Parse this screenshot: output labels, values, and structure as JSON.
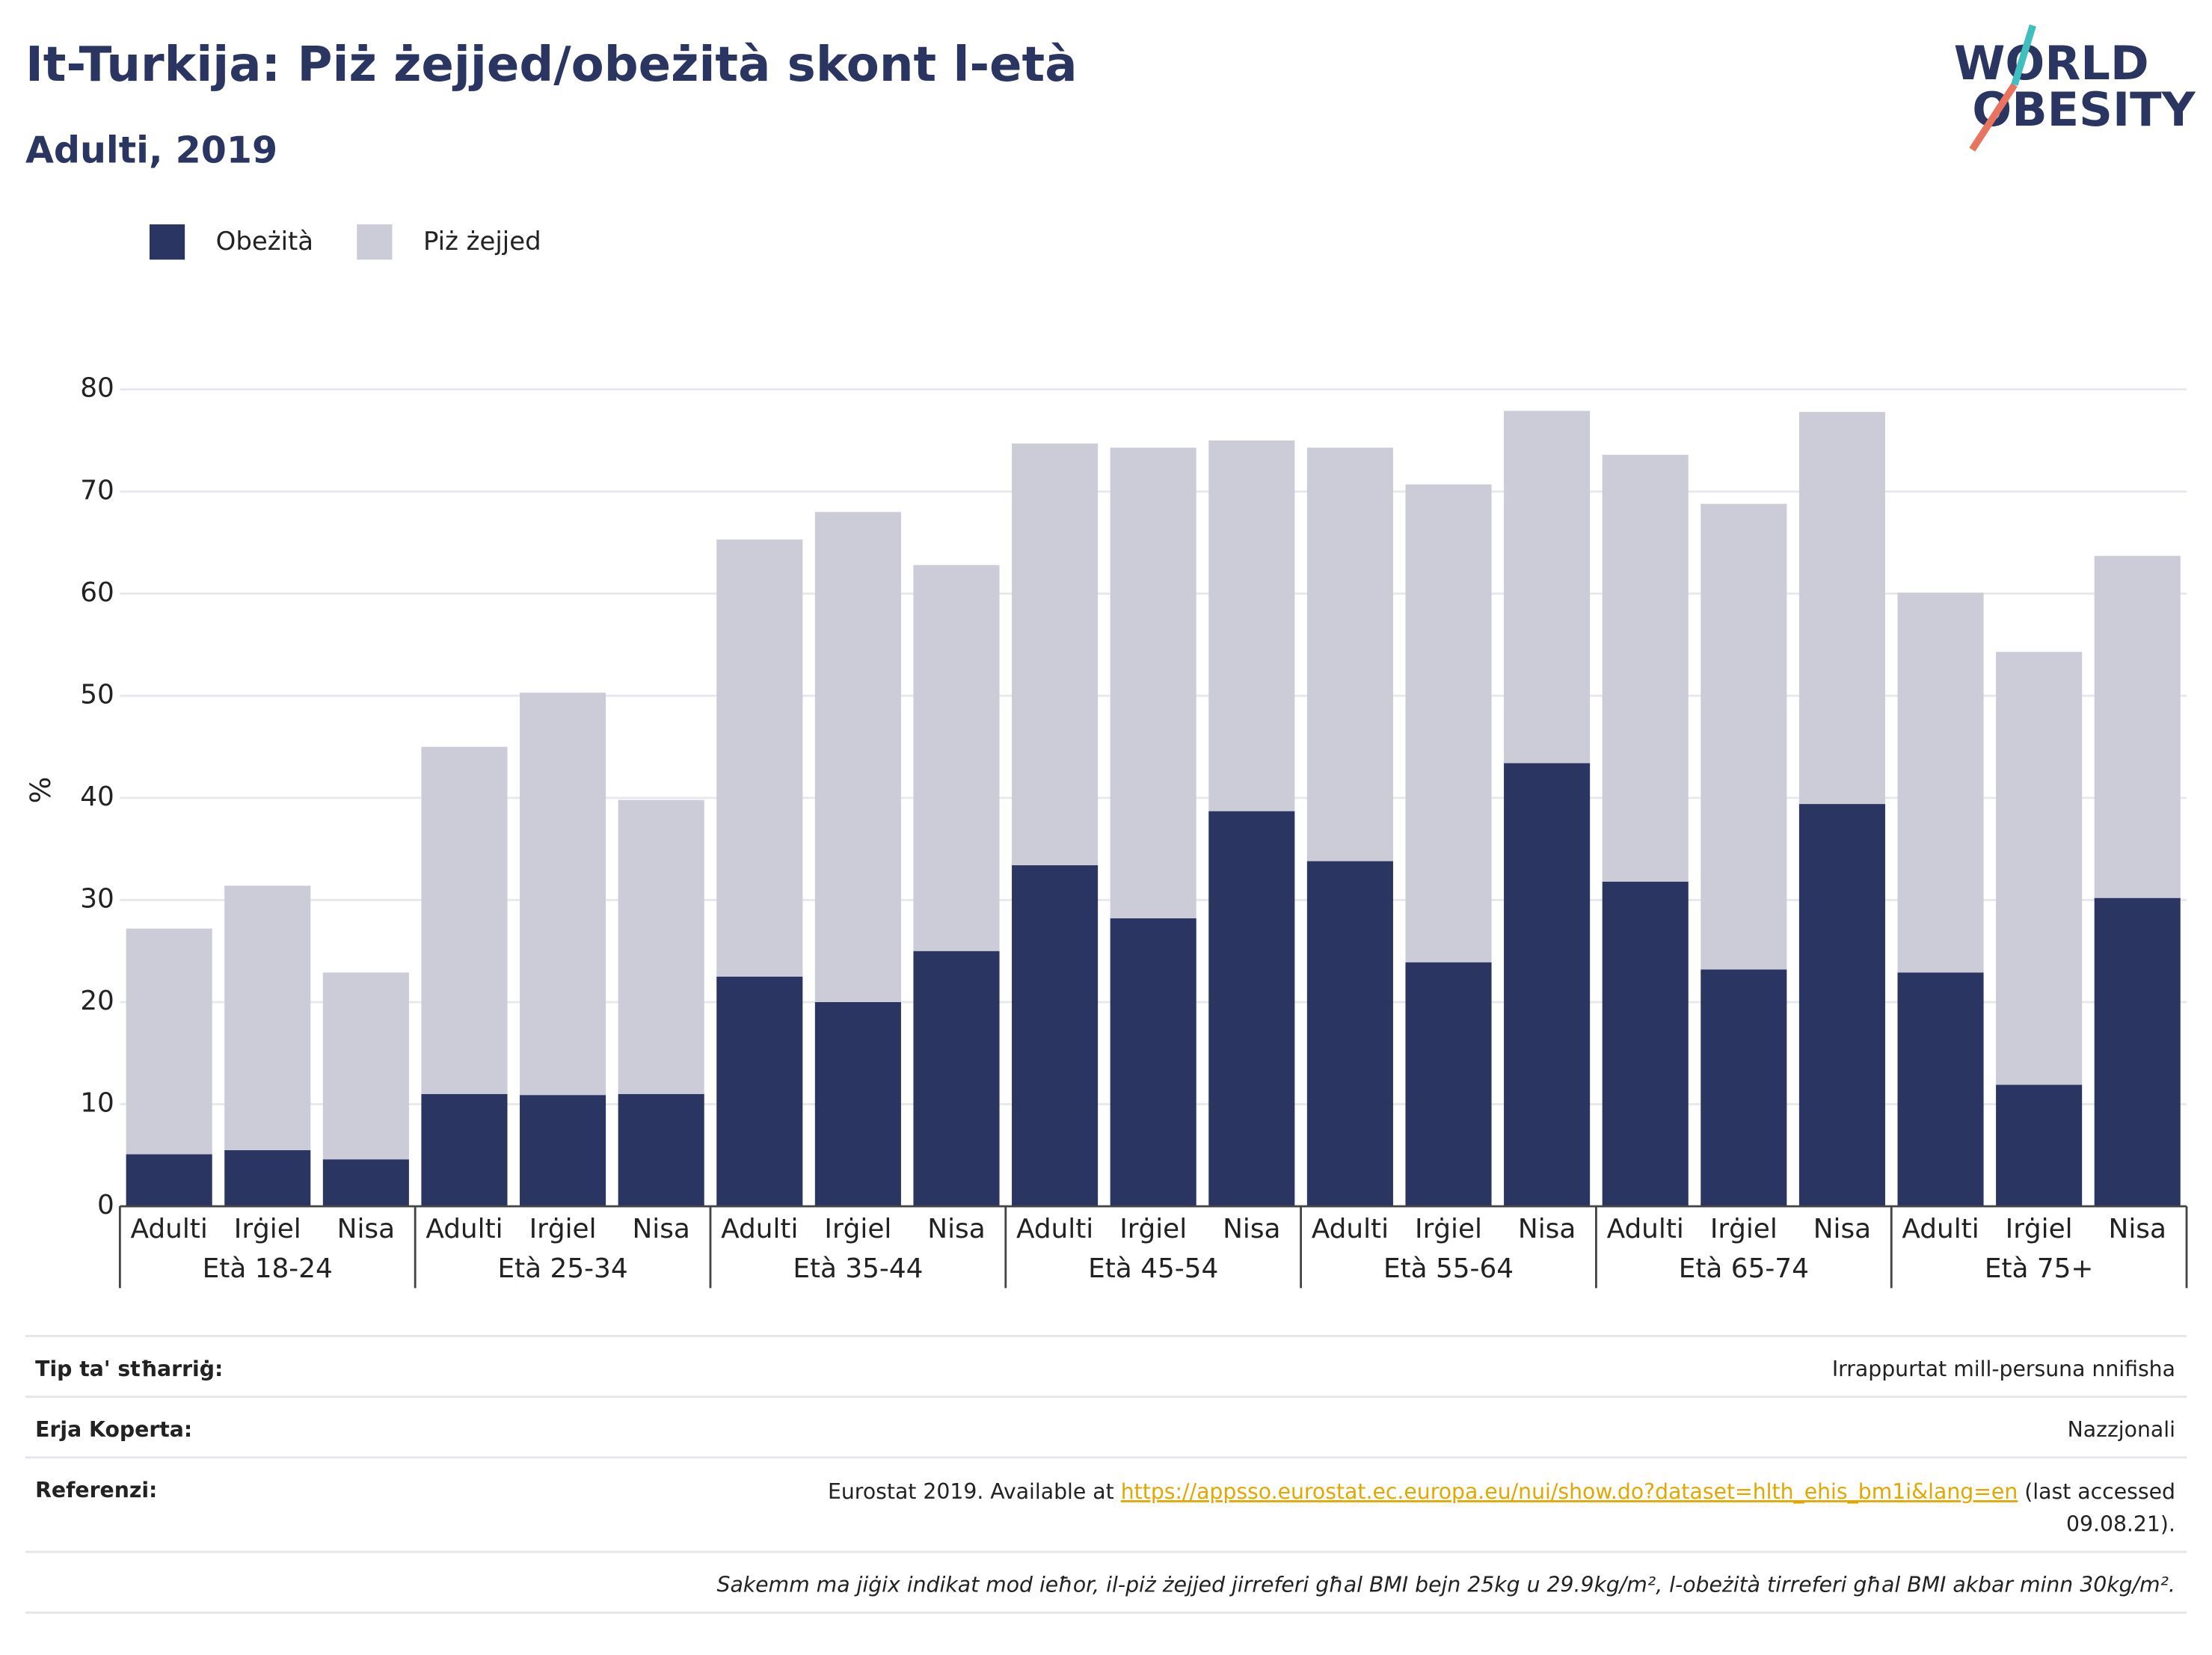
{
  "chart_data": {
    "type": "stacked_bar",
    "title": "It-Turkija: Piż żejjed/obeżità skont l-età",
    "subtitle": "Adulti, 2019",
    "y_label": "%",
    "categories": [
      "Adulti",
      "Irġiel",
      "Nisa",
      "Adulti",
      "Irġiel",
      "Nisa",
      "Adulti",
      "Irġiel",
      "Nisa",
      "Adulti",
      "Irġiel",
      "Nisa",
      "Adulti",
      "Irġiel",
      "Nisa",
      "Adulti",
      "Irġiel",
      "Nisa",
      "Adulti",
      "Irġiel",
      "Nisa"
    ],
    "groups": [
      "Età 18-24",
      "Età 25-34",
      "Età 35-44",
      "Età 45-54",
      "Età 55-64",
      "Età 65-74",
      "Età 75+"
    ],
    "series": [
      {
        "name": "Obeżità",
        "color": "#2a3561",
        "values": [
          5.1,
          5.5,
          4.6,
          11.0,
          10.9,
          11.0,
          22.5,
          20.0,
          25.0,
          33.4,
          28.2,
          38.7,
          33.8,
          23.9,
          43.4,
          31.8,
          23.2,
          39.4,
          22.9,
          11.9,
          30.2
        ]
      },
      {
        "name": "Piż żejjed",
        "color": "#cbccd8",
        "values": [
          22.1,
          25.9,
          18.3,
          34.0,
          39.4,
          28.8,
          42.8,
          48.0,
          37.8,
          41.3,
          46.1,
          36.3,
          40.5,
          46.8,
          34.5,
          41.8,
          45.6,
          38.4,
          37.2,
          42.4,
          33.5
        ]
      }
    ],
    "ylim": [
      0,
      80
    ],
    "yticks": [
      0,
      10,
      20,
      30,
      40,
      50,
      60,
      70,
      80
    ],
    "grid": true,
    "legend": "top-left"
  },
  "logo": {
    "line1": "WORLD",
    "line2": "OBESITY"
  },
  "footer": {
    "rows": [
      {
        "label": "Tip ta' stħarriġ:",
        "value": "Irrappurtat mill-persuna nnifisha"
      },
      {
        "label": "Erja Koperta:",
        "value": "Nazzjonali"
      }
    ],
    "reference": {
      "label": "Referenzi:",
      "prefix": "Eurostat 2019. Available at ",
      "link": "https://appsso.eurostat.ec.europa.eu/nui/show.do?dataset=hlth_ehis_bm1i&lang=en",
      "suffix": " (last accessed",
      "line2": "09.08.21)."
    },
    "note": "Sakemm ma jiġix indikat mod ieħor, il-piż żejjed jirreferi għal BMI bejn 25kg u 29.9kg/m², l-obeżità tirreferi għal BMI akbar minn 30kg/m²."
  }
}
